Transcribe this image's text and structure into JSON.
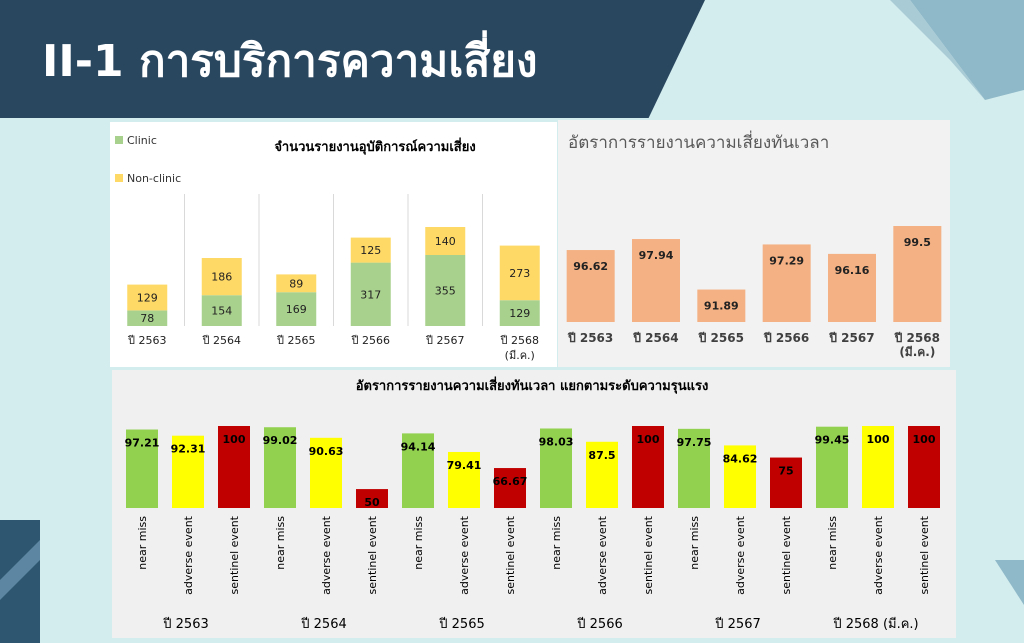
{
  "slide": {
    "title": "II-1 การบริการความเสี่ยง"
  },
  "chart_data": [
    {
      "type": "bar",
      "stacked": true,
      "title": "จำนวนรายงานอุบัติการณ์ความเสี่ยง",
      "categories": [
        "ปี 2563",
        "ปี 2564",
        "ปี 2565",
        "ปี 2566",
        "ปี 2567",
        "ปี 2568 (มี.ค.)"
      ],
      "series": [
        {
          "name": "Clinic",
          "values": [
            78,
            154,
            169,
            317,
            355,
            129
          ],
          "color": "#a9d18e"
        },
        {
          "name": "Non-clinic",
          "values": [
            129,
            186,
            89,
            125,
            140,
            273
          ],
          "color": "#ffd966"
        }
      ],
      "legend": "top-left",
      "grid": false
    },
    {
      "type": "bar",
      "title": "อัตราการรายงานความเสี่ยงทันเวลา",
      "categories": [
        "ปี 2563",
        "ปี 2564",
        "ปี 2565",
        "ปี 2566",
        "ปี 2567",
        "ปี 2568 (มี.ค.)"
      ],
      "values": [
        96.62,
        97.94,
        91.89,
        97.29,
        96.16,
        99.5
      ],
      "color": "#f4b183",
      "grid": false
    },
    {
      "type": "bar",
      "title": "อัตราการรายงานความเสี่ยงทันเวลา แยกตามระดับความรุนแรง",
      "groups": [
        "ปี 2563",
        "ปี 2564",
        "ปี 2565",
        "ปี 2566",
        "ปี 2567",
        "ปี 2568 (มี.ค.)"
      ],
      "subcategories": [
        "near miss",
        "adverse event",
        "sentinel event"
      ],
      "colors": [
        "#92d050",
        "#ffff00",
        "#c00000"
      ],
      "values": [
        [
          97.21,
          92.31,
          100
        ],
        [
          99.02,
          90.63,
          50
        ],
        [
          94.14,
          79.41,
          66.67
        ],
        [
          98.03,
          87.5,
          100
        ],
        [
          97.75,
          84.62,
          75
        ],
        [
          99.45,
          100,
          100
        ]
      ],
      "grid": false
    }
  ]
}
